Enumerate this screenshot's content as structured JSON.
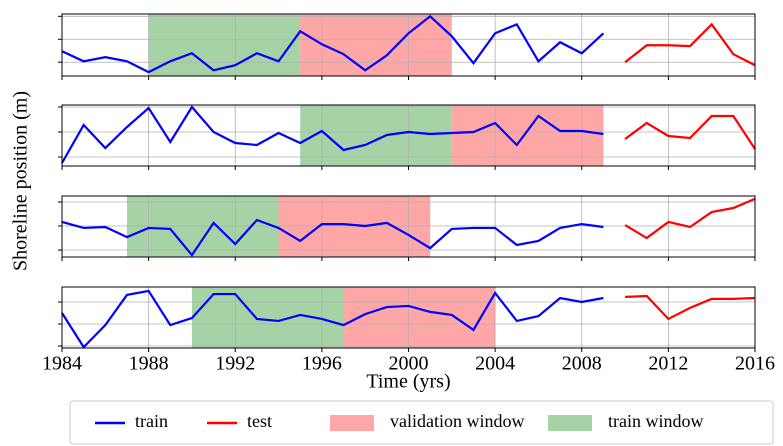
{
  "ylabel": "Shoreline position (m)",
  "chart_data": [
    {
      "type": "line",
      "xlim": [
        1984,
        2016
      ],
      "xticks": [
        1984,
        1988,
        1992,
        1996,
        2000,
        2004,
        2008,
        2012,
        2016
      ],
      "ylim": [
        0.4,
        3.1
      ],
      "yticks": [
        1,
        2,
        3
      ],
      "grid": true,
      "spans": [
        {
          "name": "train window",
          "color": "green",
          "alpha": 0.35,
          "x": [
            1988,
            1995
          ]
        },
        {
          "name": "validation window",
          "color": "red",
          "alpha": 0.35,
          "x": [
            1995,
            2002
          ]
        }
      ],
      "series": [
        {
          "name": "train",
          "color": "blue",
          "x": [
            1984,
            1985,
            1986,
            1987,
            1988,
            1989,
            1990,
            1991,
            1992,
            1993,
            1994,
            1995,
            1996,
            1997,
            1998,
            1999,
            2000,
            2001,
            2002,
            2003,
            2004,
            2005,
            2006,
            2007,
            2008,
            2009
          ],
          "values": [
            1.48,
            1.04,
            1.22,
            1.04,
            0.57,
            1.04,
            1.39,
            0.65,
            0.87,
            1.39,
            1.04,
            2.35,
            1.78,
            1.35,
            0.65,
            1.3,
            2.26,
            3.0,
            2.13,
            0.96,
            2.26,
            2.65,
            1.04,
            1.87,
            1.39,
            2.26
          ]
        },
        {
          "name": "test",
          "color": "red",
          "x": [
            2010,
            2011,
            2012,
            2013,
            2014,
            2015,
            2016
          ],
          "values": [
            1.0,
            1.74,
            1.74,
            1.7,
            2.65,
            1.35,
            0.87
          ]
        }
      ]
    },
    {
      "type": "line",
      "xlim": [
        1984,
        2016
      ],
      "xticks": [
        1984,
        1988,
        1992,
        1996,
        2000,
        2004,
        2008,
        2012,
        2016
      ],
      "ylim": [
        0.64,
        3.08
      ],
      "yticks": [
        1,
        2,
        3
      ],
      "grid": true,
      "spans": [
        {
          "name": "train window",
          "color": "green",
          "alpha": 0.35,
          "x": [
            1995,
            2002
          ]
        },
        {
          "name": "validation window",
          "color": "red",
          "alpha": 0.35,
          "x": [
            2002,
            2009
          ]
        }
      ],
      "series": [
        {
          "name": "train",
          "color": "blue",
          "x": [
            1984,
            1985,
            1986,
            1987,
            1988,
            1989,
            1990,
            1991,
            1992,
            1993,
            1994,
            1995,
            1996,
            1997,
            1998,
            1999,
            2000,
            2001,
            2002,
            2003,
            2004,
            2005,
            2006,
            2007,
            2008,
            2009
          ],
          "values": [
            0.76,
            2.28,
            1.36,
            2.2,
            2.96,
            1.6,
            3.0,
            2.0,
            1.56,
            1.48,
            1.96,
            1.56,
            2.04,
            1.28,
            1.48,
            1.88,
            2.0,
            1.92,
            1.96,
            2.0,
            2.36,
            1.48,
            2.64,
            2.04,
            2.04,
            1.92
          ]
        },
        {
          "name": "test",
          "color": "red",
          "x": [
            2010,
            2011,
            2012,
            2013,
            2014,
            2015,
            2016
          ],
          "values": [
            1.72,
            2.36,
            1.84,
            1.76,
            2.64,
            2.64,
            1.32
          ]
        }
      ]
    },
    {
      "type": "line",
      "xlim": [
        1984,
        2016
      ],
      "xticks": [
        1984,
        1988,
        1992,
        1996,
        2000,
        2004,
        2008,
        2012,
        2016
      ],
      "ylim": [
        0.71,
        3.25
      ],
      "yticks": [
        1,
        2,
        3
      ],
      "grid": true,
      "spans": [
        {
          "name": "train window",
          "color": "green",
          "alpha": 0.35,
          "x": [
            1987,
            1994
          ]
        },
        {
          "name": "validation window",
          "color": "red",
          "alpha": 0.35,
          "x": [
            1994,
            2001
          ]
        }
      ],
      "series": [
        {
          "name": "train",
          "color": "blue",
          "x": [
            1984,
            1985,
            1986,
            1987,
            1988,
            1989,
            1990,
            1991,
            1992,
            1993,
            1994,
            1995,
            1996,
            1997,
            1998,
            1999,
            2000,
            2001,
            2002,
            2003,
            2004,
            2005,
            2006,
            2007,
            2008,
            2009
          ],
          "values": [
            2.17,
            1.92,
            1.96,
            1.54,
            1.92,
            1.88,
            0.79,
            2.13,
            1.25,
            2.25,
            1.92,
            1.38,
            2.08,
            2.08,
            2.0,
            2.13,
            1.63,
            1.08,
            1.88,
            1.92,
            1.92,
            1.21,
            1.38,
            1.92,
            2.08,
            1.96
          ]
        },
        {
          "name": "test",
          "color": "red",
          "x": [
            2010,
            2011,
            2012,
            2013,
            2014,
            2015,
            2016
          ],
          "values": [
            2.04,
            1.5,
            2.17,
            1.96,
            2.58,
            2.75,
            3.13
          ]
        }
      ]
    },
    {
      "type": "line",
      "xlim": [
        1984,
        2016
      ],
      "xticks": [
        1984,
        1988,
        1992,
        1996,
        2000,
        2004,
        2008,
        2012,
        2016
      ],
      "ylim": [
        0.91,
        3.68
      ],
      "yticks": [
        1,
        2,
        3
      ],
      "grid": true,
      "xlabel": "Time (yrs)",
      "spans": [
        {
          "name": "train window",
          "color": "green",
          "alpha": 0.35,
          "x": [
            1990,
            1997
          ]
        },
        {
          "name": "validation window",
          "color": "red",
          "alpha": 0.35,
          "x": [
            1997,
            2004
          ]
        }
      ],
      "series": [
        {
          "name": "train",
          "color": "blue",
          "x": [
            1984,
            1985,
            1986,
            1987,
            1988,
            1989,
            1990,
            1991,
            1992,
            1993,
            1994,
            1995,
            1996,
            1997,
            1998,
            1999,
            2000,
            2001,
            2002,
            2003,
            2004,
            2005,
            2006,
            2007,
            2008,
            2009
          ],
          "values": [
            2.5,
            0.95,
            1.95,
            3.32,
            3.5,
            1.95,
            2.27,
            3.36,
            3.36,
            2.23,
            2.14,
            2.41,
            2.23,
            1.95,
            2.45,
            2.77,
            2.82,
            2.55,
            2.41,
            1.73,
            3.41,
            2.14,
            2.36,
            3.18,
            3.0,
            3.18
          ]
        },
        {
          "name": "test",
          "color": "red",
          "x": [
            2010,
            2011,
            2012,
            2013,
            2014,
            2015,
            2016
          ],
          "values": [
            3.23,
            3.27,
            2.23,
            2.73,
            3.14,
            3.14,
            3.18
          ]
        }
      ]
    }
  ]
}
